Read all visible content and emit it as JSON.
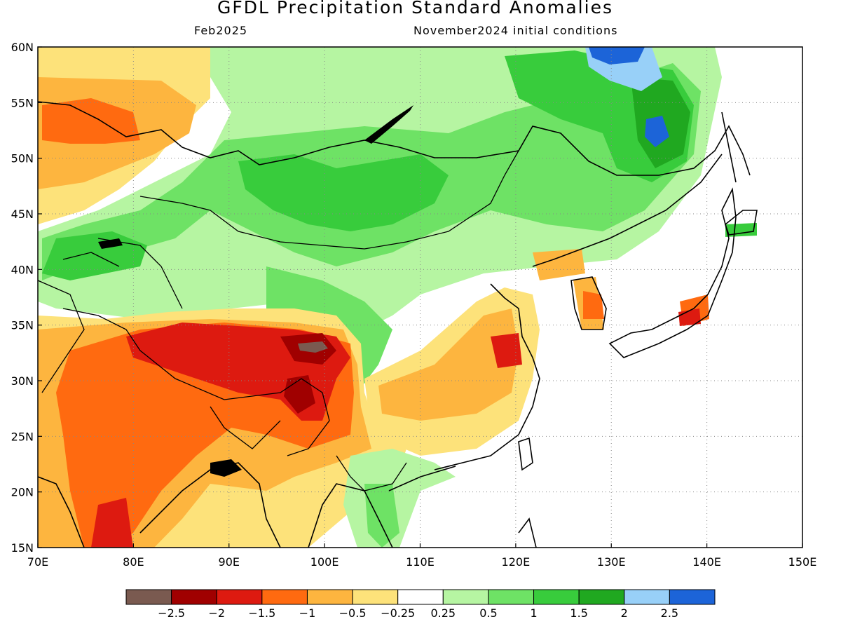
{
  "title": "GFDL Precipitation Standard Anomalies",
  "forecast_month": "Feb2025",
  "initial_conditions": "November2024 initial conditions",
  "lat_labels": [
    "60N",
    "55N",
    "50N",
    "45N",
    "40N",
    "35N",
    "30N",
    "25N",
    "20N",
    "15N"
  ],
  "lon_labels": [
    "70E",
    "80E",
    "90E",
    "100E",
    "110E",
    "120E",
    "130E",
    "140E",
    "150E"
  ],
  "colorbar": {
    "colors": [
      "#7a5a50",
      "#a00000",
      "#dd1a10",
      "#ff6a10",
      "#fdb53f",
      "#fde27a",
      "#ffffff",
      "#b6f5a2",
      "#6ee265",
      "#38cc3c",
      "#20a820",
      "#98d0f8",
      "#1c64d8"
    ],
    "tick_labels": [
      "−2.5",
      "−2",
      "−1.5",
      "−1",
      "−0.5",
      "−0.25",
      "0.25",
      "0.5",
      "1",
      "1.5",
      "2",
      "2.5"
    ]
  },
  "map_data": {
    "lon_range": [
      70,
      150
    ],
    "lat_range": [
      15,
      60
    ],
    "grid": "dotted every 10° longitude and 5° latitude",
    "anomaly_regions": [
      {
        "name": "Tibetan Plateau / northern India dry anomaly",
        "level": "-2.5 to -1",
        "color": "#dd1a10"
      },
      {
        "name": "southeastern China dry anomaly",
        "level": "-1 to -0.5",
        "color": "#fdb53f"
      },
      {
        "name": "Mongolia / northern China wet anomaly",
        "level": "0.5 to 1.5",
        "color": "#38cc3c"
      },
      {
        "name": "Russian Far East wet anomaly",
        "level": "1 to 2.5",
        "color": "#20a820"
      },
      {
        "name": "western Siberia dry anomaly",
        "level": "-1.5 to -0.5",
        "color": "#ff6a10"
      },
      {
        "name": "Korea dry anomaly",
        "level": "-1 to -1.5",
        "color": "#ff6a10"
      },
      {
        "name": "central Japan dry anomaly",
        "level": "-1.5 to -2",
        "color": "#dd1a10"
      }
    ]
  }
}
